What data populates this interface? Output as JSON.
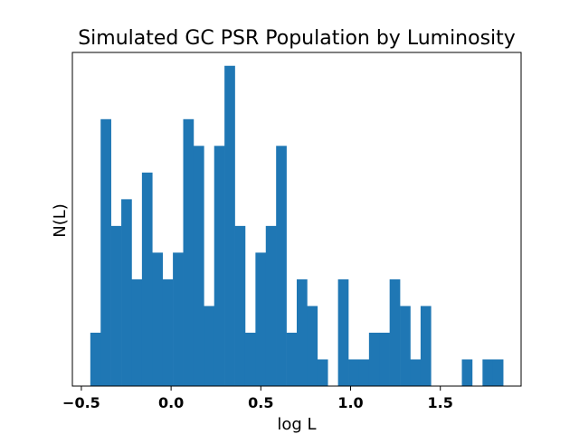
{
  "chart_data": {
    "type": "bar",
    "title": "Simulated GC PSR Population by Luminosity",
    "xlabel": "log L",
    "ylabel": "N(L)",
    "xlim": [
      -0.55,
      1.95
    ],
    "ylim": [
      0,
      12.5
    ],
    "xticks": [
      -0.5,
      0.0,
      0.5,
      1.0,
      1.5
    ],
    "xtick_labels": [
      "−0.5",
      "0.0",
      "0.5",
      "1.0",
      "1.5"
    ],
    "yticks_visible": false,
    "grid": false,
    "bar_color": "#1f77b4",
    "bin_width": 0.0575,
    "bin_start": -0.45,
    "counts": [
      2,
      10,
      6,
      7,
      4,
      8,
      5,
      4,
      5,
      10,
      9,
      3,
      9,
      12,
      6,
      2,
      5,
      6,
      9,
      2,
      4,
      3,
      1,
      0,
      4,
      1,
      1,
      2,
      2,
      4,
      3,
      1,
      3,
      0,
      0,
      0,
      1,
      0,
      1,
      1
    ]
  }
}
